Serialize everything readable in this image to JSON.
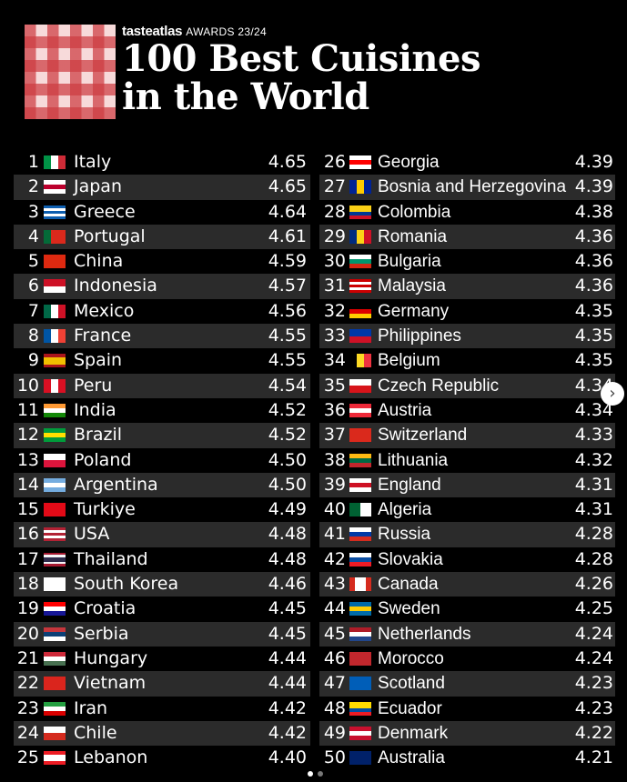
{
  "header": {
    "brand": "tasteatlas",
    "awards": "AWARDS 23/24",
    "title_line1": "100 Best Cuisines",
    "title_line2": "in the World"
  },
  "colors": {
    "background": "#000000",
    "row_stripe": "#2b2b2b",
    "logo_red": "#cd3c41",
    "logo_pink": "#f7dada"
  },
  "left_column": [
    {
      "rank": "1",
      "country": "Italy",
      "score": "4.65",
      "flag": [
        "#009246",
        "#ffffff",
        "#ce2b37"
      ],
      "dir": "v"
    },
    {
      "rank": "2",
      "country": "Japan",
      "score": "4.65",
      "flag": [
        "#ffffff",
        "#bc002d",
        "#ffffff"
      ],
      "dir": "h"
    },
    {
      "rank": "3",
      "country": "Greece",
      "score": "4.64",
      "flag": [
        "#0d5eaf",
        "#ffffff",
        "#0d5eaf",
        "#ffffff",
        "#0d5eaf"
      ],
      "dir": "h"
    },
    {
      "rank": "4",
      "country": "Portugal",
      "score": "4.61",
      "flag": [
        "#046a38",
        "#da291c",
        "#da291c"
      ],
      "dir": "v"
    },
    {
      "rank": "5",
      "country": "China",
      "score": "4.59",
      "flag": [
        "#de2910"
      ],
      "dir": "h"
    },
    {
      "rank": "6",
      "country": "Indonesia",
      "score": "4.57",
      "flag": [
        "#ce1126",
        "#ffffff"
      ],
      "dir": "h"
    },
    {
      "rank": "7",
      "country": "Mexico",
      "score": "4.56",
      "flag": [
        "#006847",
        "#ffffff",
        "#ce1126"
      ],
      "dir": "v"
    },
    {
      "rank": "8",
      "country": "France",
      "score": "4.55",
      "flag": [
        "#0055a4",
        "#ffffff",
        "#ef4135"
      ],
      "dir": "v"
    },
    {
      "rank": "9",
      "country": "Spain",
      "score": "4.55",
      "flag": [
        "#aa151b",
        "#f1bf00",
        "#f1bf00",
        "#aa151b"
      ],
      "dir": "h"
    },
    {
      "rank": "10",
      "country": "Peru",
      "score": "4.54",
      "flag": [
        "#d91023",
        "#ffffff",
        "#d91023"
      ],
      "dir": "v"
    },
    {
      "rank": "11",
      "country": "India",
      "score": "4.52",
      "flag": [
        "#ff9933",
        "#ffffff",
        "#138808"
      ],
      "dir": "h"
    },
    {
      "rank": "12",
      "country": "Brazil",
      "score": "4.52",
      "flag": [
        "#009c3b",
        "#ffdf00",
        "#009c3b"
      ],
      "dir": "h"
    },
    {
      "rank": "13",
      "country": "Poland",
      "score": "4.50",
      "flag": [
        "#ffffff",
        "#dc143c"
      ],
      "dir": "h"
    },
    {
      "rank": "14",
      "country": "Argentina",
      "score": "4.50",
      "flag": [
        "#74acdf",
        "#ffffff",
        "#74acdf"
      ],
      "dir": "h"
    },
    {
      "rank": "15",
      "country": "Turkiye",
      "score": "4.49",
      "flag": [
        "#e30a17"
      ],
      "dir": "h"
    },
    {
      "rank": "16",
      "country": "USA",
      "score": "4.48",
      "flag": [
        "#b22234",
        "#ffffff",
        "#b22234",
        "#ffffff",
        "#b22234"
      ],
      "dir": "h"
    },
    {
      "rank": "17",
      "country": "Thailand",
      "score": "4.48",
      "flag": [
        "#a51931",
        "#f4f5f8",
        "#2d2a4a",
        "#2d2a4a",
        "#f4f5f8",
        "#a51931"
      ],
      "dir": "h"
    },
    {
      "rank": "18",
      "country": "South Korea",
      "score": "4.46",
      "flag": [
        "#ffffff"
      ],
      "dir": "h"
    },
    {
      "rank": "19",
      "country": "Croatia",
      "score": "4.45",
      "flag": [
        "#ff0000",
        "#ffffff",
        "#171796"
      ],
      "dir": "h"
    },
    {
      "rank": "20",
      "country": "Serbia",
      "score": "4.45",
      "flag": [
        "#c6363c",
        "#0c4076",
        "#ffffff"
      ],
      "dir": "h"
    },
    {
      "rank": "21",
      "country": "Hungary",
      "score": "4.44",
      "flag": [
        "#ce2939",
        "#ffffff",
        "#477050"
      ],
      "dir": "h"
    },
    {
      "rank": "22",
      "country": "Vietnam",
      "score": "4.44",
      "flag": [
        "#da251d"
      ],
      "dir": "h"
    },
    {
      "rank": "23",
      "country": "Iran",
      "score": "4.42",
      "flag": [
        "#239f40",
        "#ffffff",
        "#da0000"
      ],
      "dir": "h"
    },
    {
      "rank": "24",
      "country": "Chile",
      "score": "4.42",
      "flag": [
        "#ffffff",
        "#d52b1e"
      ],
      "dir": "h"
    },
    {
      "rank": "25",
      "country": "Lebanon",
      "score": "4.40",
      "flag": [
        "#ed1c24",
        "#ffffff",
        "#ffffff",
        "#ed1c24"
      ],
      "dir": "h"
    }
  ],
  "right_column": [
    {
      "rank": "26",
      "country": "Georgia",
      "score": "4.39",
      "flag": [
        "#ffffff",
        "#ff0000",
        "#ffffff"
      ],
      "dir": "h"
    },
    {
      "rank": "27",
      "country": "Bosnia and Herzegovina",
      "score": "4.39",
      "flag": [
        "#002395",
        "#fecb00",
        "#002395"
      ],
      "dir": "v"
    },
    {
      "rank": "28",
      "country": "Colombia",
      "score": "4.38",
      "flag": [
        "#fcd116",
        "#fcd116",
        "#003893",
        "#ce1126"
      ],
      "dir": "h"
    },
    {
      "rank": "29",
      "country": "Romania",
      "score": "4.36",
      "flag": [
        "#002b7f",
        "#fcd116",
        "#ce1126"
      ],
      "dir": "v"
    },
    {
      "rank": "30",
      "country": "Bulgaria",
      "score": "4.36",
      "flag": [
        "#ffffff",
        "#00966e",
        "#d62612"
      ],
      "dir": "h"
    },
    {
      "rank": "31",
      "country": "Malaysia",
      "score": "4.36",
      "flag": [
        "#cc0001",
        "#ffffff",
        "#cc0001",
        "#ffffff",
        "#cc0001"
      ],
      "dir": "h"
    },
    {
      "rank": "32",
      "country": "Germany",
      "score": "4.35",
      "flag": [
        "#000000",
        "#dd0000",
        "#ffce00"
      ],
      "dir": "h"
    },
    {
      "rank": "33",
      "country": "Philippines",
      "score": "4.35",
      "flag": [
        "#0038a8",
        "#ce1126"
      ],
      "dir": "h"
    },
    {
      "rank": "34",
      "country": "Belgium",
      "score": "4.35",
      "flag": [
        "#000000",
        "#fdda24",
        "#ef3340"
      ],
      "dir": "v"
    },
    {
      "rank": "35",
      "country": "Czech Republic",
      "score": "4.34",
      "flag": [
        "#ffffff",
        "#d7141a"
      ],
      "dir": "h"
    },
    {
      "rank": "36",
      "country": "Austria",
      "score": "4.34",
      "flag": [
        "#ed2939",
        "#ffffff",
        "#ed2939"
      ],
      "dir": "h"
    },
    {
      "rank": "37",
      "country": "Switzerland",
      "score": "4.33",
      "flag": [
        "#da291c"
      ],
      "dir": "h"
    },
    {
      "rank": "38",
      "country": "Lithuania",
      "score": "4.32",
      "flag": [
        "#fdb913",
        "#006a44",
        "#c1272d"
      ],
      "dir": "h"
    },
    {
      "rank": "39",
      "country": "England",
      "score": "4.31",
      "flag": [
        "#ffffff",
        "#ce1124",
        "#ffffff"
      ],
      "dir": "h"
    },
    {
      "rank": "40",
      "country": "Algeria",
      "score": "4.31",
      "flag": [
        "#006233",
        "#ffffff"
      ],
      "dir": "v"
    },
    {
      "rank": "41",
      "country": "Russia",
      "score": "4.28",
      "flag": [
        "#ffffff",
        "#0039a6",
        "#d52b1e"
      ],
      "dir": "h"
    },
    {
      "rank": "42",
      "country": "Slovakia",
      "score": "4.28",
      "flag": [
        "#ffffff",
        "#0b4ea2",
        "#ee1c25"
      ],
      "dir": "h"
    },
    {
      "rank": "43",
      "country": "Canada",
      "score": "4.26",
      "flag": [
        "#d52b1e",
        "#ffffff",
        "#ffffff",
        "#d52b1e"
      ],
      "dir": "v"
    },
    {
      "rank": "44",
      "country": "Sweden",
      "score": "4.25",
      "flag": [
        "#006aa7",
        "#fecc00",
        "#006aa7"
      ],
      "dir": "h"
    },
    {
      "rank": "45",
      "country": "Netherlands",
      "score": "4.24",
      "flag": [
        "#ae1c28",
        "#ffffff",
        "#21468b"
      ],
      "dir": "h"
    },
    {
      "rank": "46",
      "country": "Morocco",
      "score": "4.24",
      "flag": [
        "#c1272d"
      ],
      "dir": "h"
    },
    {
      "rank": "47",
      "country": "Scotland",
      "score": "4.23",
      "flag": [
        "#005eb8"
      ],
      "dir": "h"
    },
    {
      "rank": "48",
      "country": "Ecuador",
      "score": "4.23",
      "flag": [
        "#ffdd00",
        "#ffdd00",
        "#034ea2",
        "#ed1c24"
      ],
      "dir": "h"
    },
    {
      "rank": "49",
      "country": "Denmark",
      "score": "4.22",
      "flag": [
        "#c8102e",
        "#ffffff",
        "#c8102e"
      ],
      "dir": "h"
    },
    {
      "rank": "50",
      "country": "Australia",
      "score": "4.21",
      "flag": [
        "#012169"
      ],
      "dir": "h"
    }
  ],
  "navigation": {
    "next_icon": "chevron-right-icon",
    "next_glyph": "›",
    "page_dots": 2,
    "active_dot": 0
  }
}
